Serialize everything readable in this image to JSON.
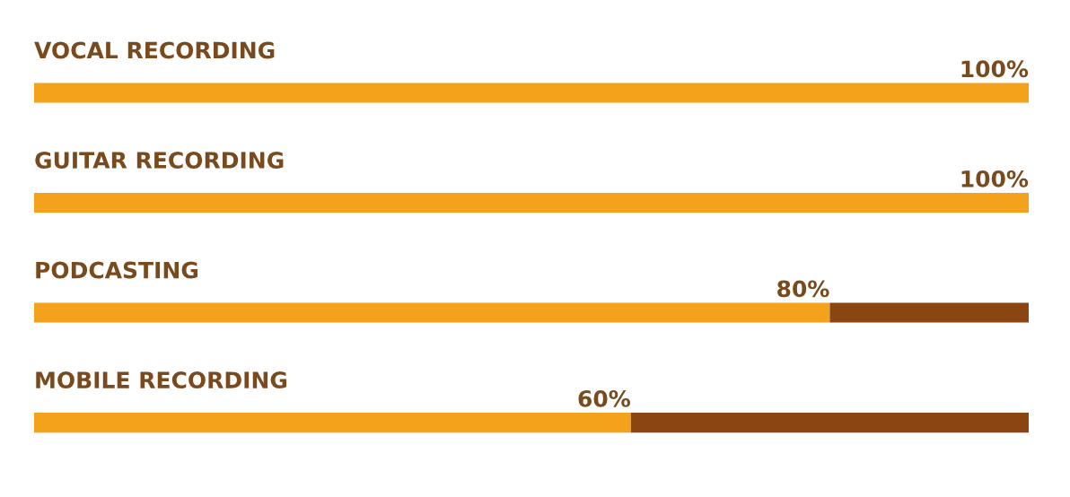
{
  "chart_data": {
    "type": "bar",
    "orientation": "horizontal",
    "stacked": true,
    "categories": [
      "VOCAL RECORDING",
      "GUITAR RECORDING",
      "PODCASTING",
      "MOBILE RECORDING"
    ],
    "series": [
      {
        "color": "#f4a11b",
        "values": [
          100,
          100,
          80,
          60
        ],
        "value_labels": [
          "100%",
          "100%",
          "80%",
          "60%"
        ]
      },
      {
        "color": "#8b4513",
        "values": [
          0,
          0,
          20,
          40
        ]
      }
    ]
  }
}
